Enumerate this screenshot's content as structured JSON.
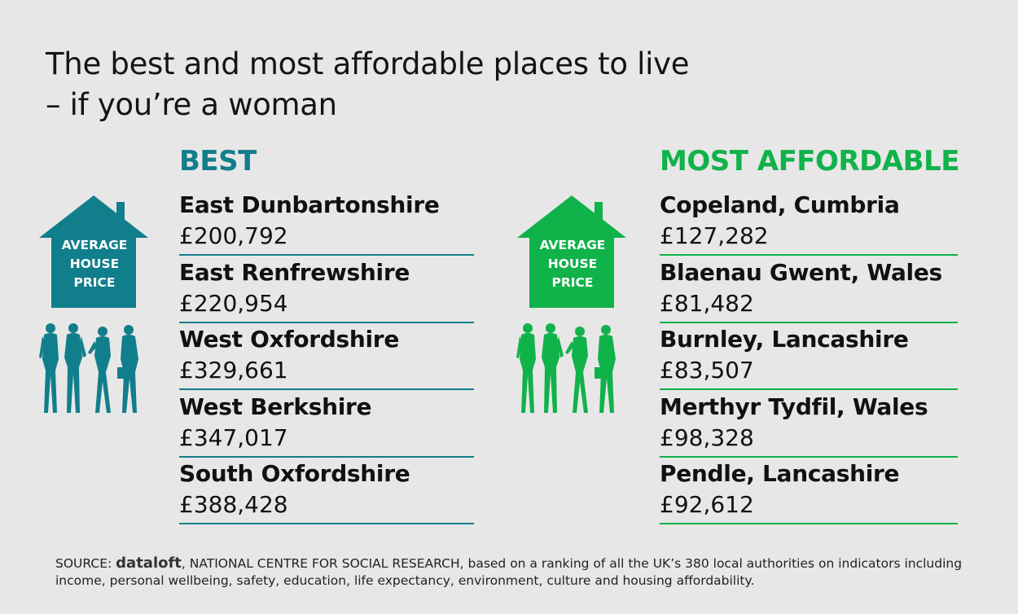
{
  "title_line1": "The best and most affordable places to live",
  "title_line2": "– if you’re a woman",
  "colors": {
    "best": "#117e8c",
    "affordable": "#10b24a"
  },
  "icon_label": [
    "AVERAGE",
    "HOUSE",
    "PRICE"
  ],
  "best": {
    "heading": "BEST",
    "items": [
      {
        "name": "East Dunbartonshire",
        "price": "£200,792"
      },
      {
        "name": "East Renfrewshire",
        "price": "£220,954"
      },
      {
        "name": "West Oxfordshire",
        "price": "£329,661"
      },
      {
        "name": "West Berkshire",
        "price": "£347,017"
      },
      {
        "name": "South Oxfordshire",
        "price": "£388,428"
      }
    ]
  },
  "affordable": {
    "heading": "MOST AFFORDABLE",
    "items": [
      {
        "name": "Copeland, Cumbria",
        "price": "£127,282"
      },
      {
        "name": "Blaenau Gwent, Wales",
        "price": "£81,482"
      },
      {
        "name": "Burnley, Lancashire",
        "price": "£83,507"
      },
      {
        "name": "Merthyr Tydfil, Wales",
        "price": "£98,328"
      },
      {
        "name": "Pendle, Lancashire",
        "price": "£92,612"
      }
    ]
  },
  "source": {
    "prefix": "SOURCE: ",
    "brand": "dataloft",
    "text": ", NATIONAL CENTRE FOR SOCIAL RESEARCH, based on a ranking of all the UK’s 380 local authorities on indicators including income, personal wellbeing, safety, education, life expectancy, environment, culture and housing affordability."
  }
}
